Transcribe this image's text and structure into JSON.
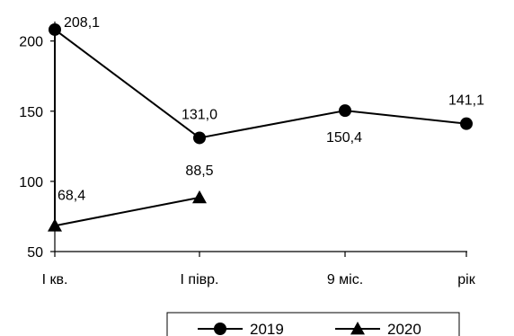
{
  "chart_data": {
    "type": "line",
    "categories": [
      "I кв.",
      "I півр.",
      "9 міс.",
      "рік"
    ],
    "series": [
      {
        "name": "2019",
        "marker": "circle",
        "values": [
          208.1,
          131.0,
          150.4,
          141.1
        ],
        "labels": [
          "208,1",
          "131,0",
          "150,4",
          "141,1"
        ]
      },
      {
        "name": "2020",
        "marker": "triangle",
        "values": [
          68.4,
          88.5,
          null,
          null
        ],
        "labels": [
          "68,4",
          "88,5",
          "",
          ""
        ]
      }
    ],
    "yticks": [
      50,
      100,
      150,
      200
    ],
    "ylim": [
      50,
      210
    ],
    "grid": false,
    "legend": "bottom",
    "colors": {
      "line": "#000000",
      "background": "#ffffff"
    }
  }
}
